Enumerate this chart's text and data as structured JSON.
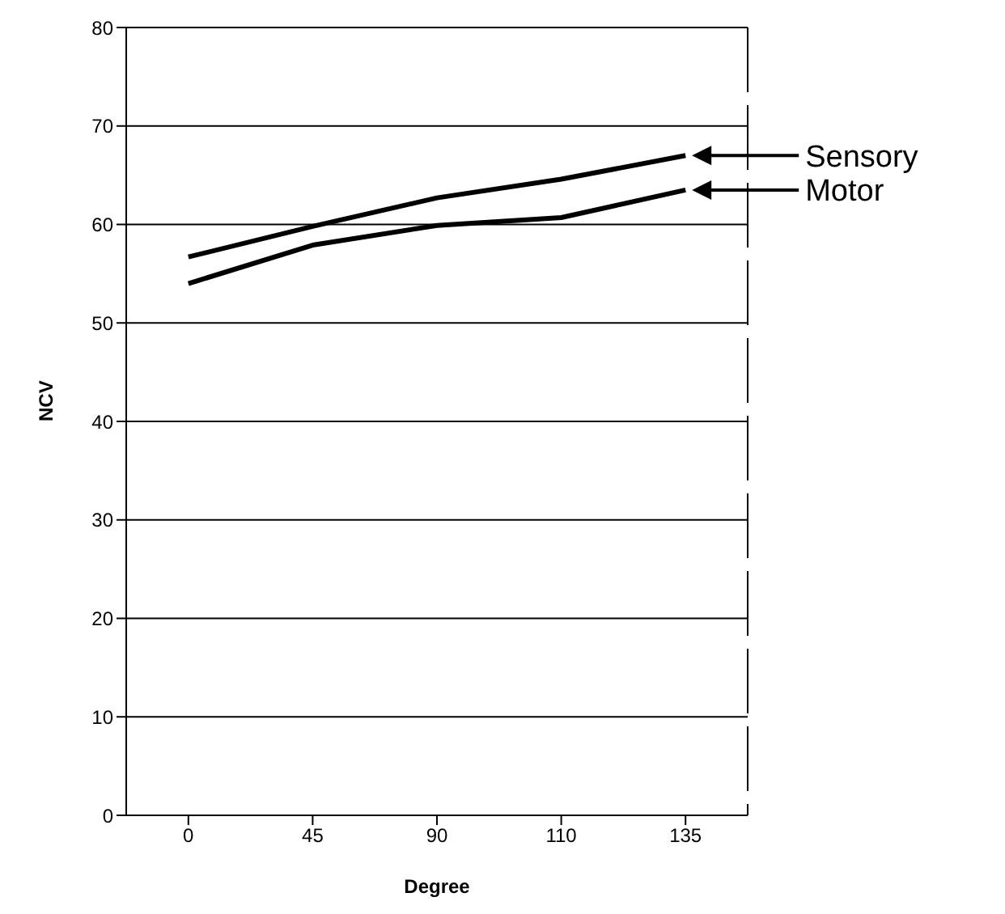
{
  "chart_data": {
    "type": "line",
    "xlabel": "Degree",
    "ylabel": "NCV",
    "categories": [
      "0",
      "45",
      "90",
      "110",
      "135"
    ],
    "series": [
      {
        "name": "Sensory",
        "color": "#000000",
        "values": [
          56.7,
          59.8,
          62.7,
          64.6,
          67.0
        ]
      },
      {
        "name": "Motor",
        "color": "#000000",
        "values": [
          54.0,
          57.9,
          59.9,
          60.7,
          63.5
        ]
      }
    ],
    "ylim": [
      0,
      80
    ],
    "yticks": [
      0,
      10,
      20,
      30,
      40,
      50,
      60,
      70,
      80
    ],
    "grid": "y",
    "legend": "right",
    "marker": "none",
    "line_style": "solid"
  }
}
